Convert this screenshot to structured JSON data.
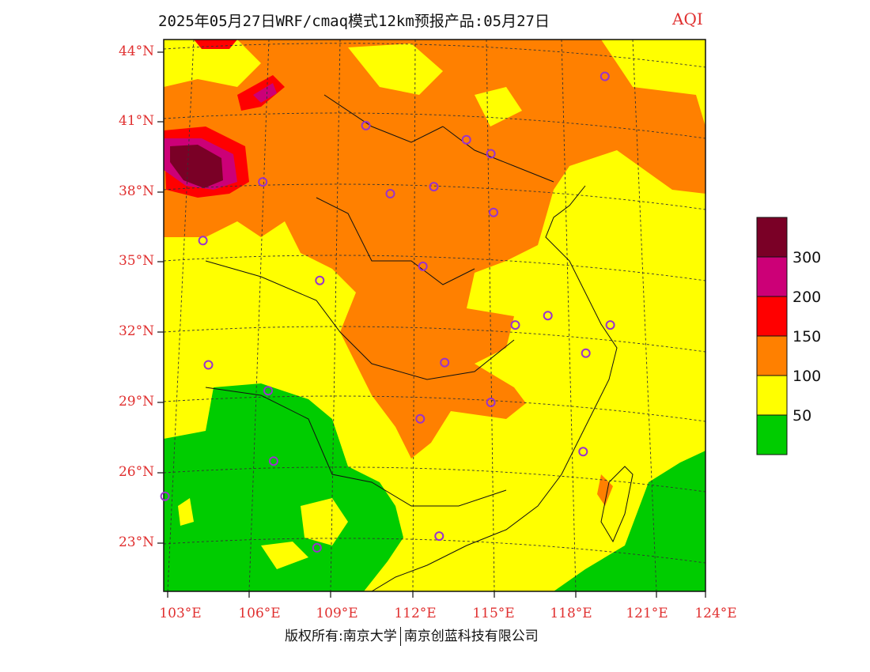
{
  "header": {
    "title": "2025年05月27日WRF/cmaq模式12km预报产品:05月27日",
    "variable": "AQI"
  },
  "axes": {
    "lat_labels": [
      "44°N",
      "41°N",
      "38°N",
      "35°N",
      "32°N",
      "29°N",
      "26°N",
      "23°N"
    ],
    "lon_labels": [
      "103°E",
      "106°E",
      "109°E",
      "112°E",
      "115°E",
      "118°E",
      "121°E",
      "124°E"
    ]
  },
  "legend": {
    "labels": [
      "300",
      "200",
      "150",
      "100",
      "50"
    ],
    "colors": [
      "#7a0026",
      "#cc0077",
      "#ff0000",
      "#ff8000",
      "#ffff00",
      "#00cc00"
    ]
  },
  "footer": {
    "left": "版权所有:南京大学",
    "right": "南京创蓝科技有限公司"
  },
  "map": {
    "marker_color": "#9933cc",
    "stations": [
      [
        119.1,
        42.9
      ],
      [
        110.3,
        40.8
      ],
      [
        114.0,
        40.2
      ],
      [
        114.9,
        39.6
      ],
      [
        106.5,
        38.4
      ],
      [
        111.2,
        37.9
      ],
      [
        112.8,
        38.2
      ],
      [
        115.0,
        37.1
      ],
      [
        104.3,
        35.9
      ],
      [
        112.4,
        34.8
      ],
      [
        108.6,
        34.2
      ],
      [
        115.8,
        32.3
      ],
      [
        117.0,
        32.7
      ],
      [
        119.3,
        32.3
      ],
      [
        118.4,
        31.1
      ],
      [
        104.5,
        30.6
      ],
      [
        113.2,
        30.7
      ],
      [
        106.7,
        29.5
      ],
      [
        114.9,
        29.0
      ],
      [
        112.3,
        28.3
      ],
      [
        106.9,
        26.5
      ],
      [
        118.3,
        26.9
      ],
      [
        102.9,
        25.0
      ],
      [
        108.5,
        22.8
      ],
      [
        113.0,
        23.3
      ]
    ]
  }
}
